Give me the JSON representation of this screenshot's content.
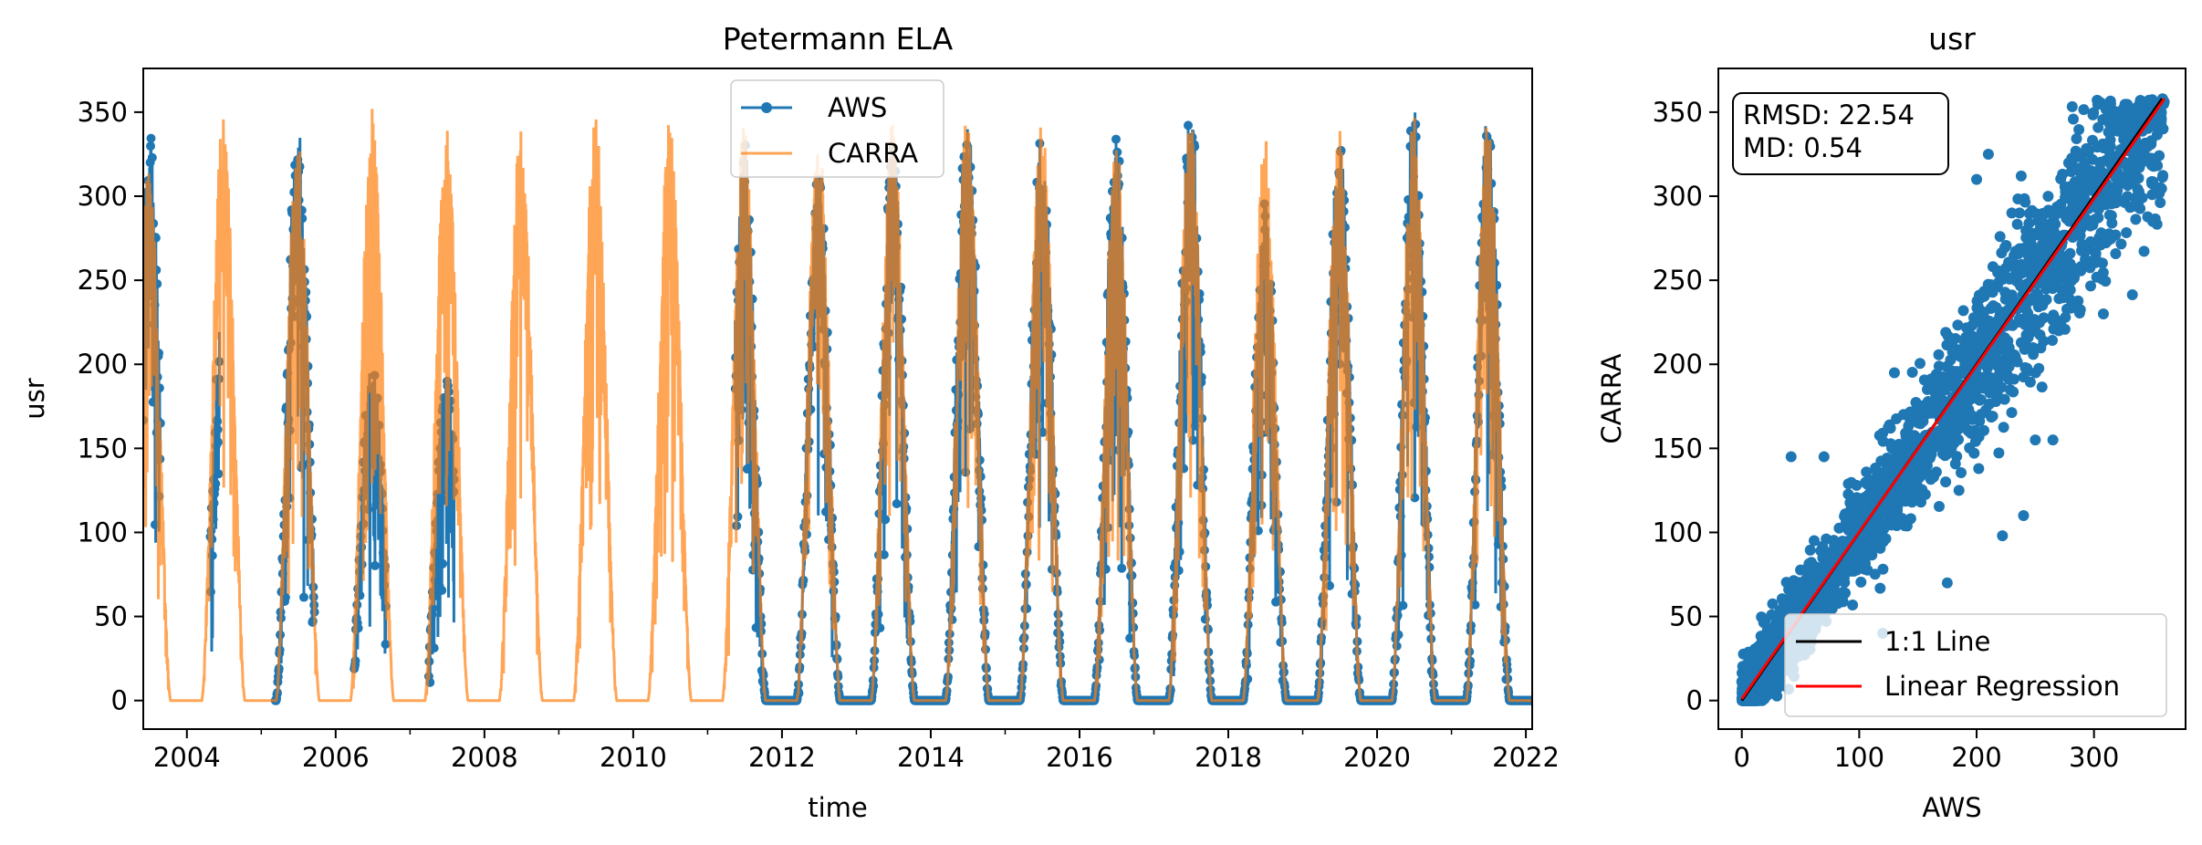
{
  "chart_data": [
    {
      "type": "line",
      "title": "Petermann ELA",
      "xlabel": "time",
      "ylabel": "usr",
      "xlim": [
        "2003-06-01",
        "2022-02-01"
      ],
      "ylim": [
        -17,
        376
      ],
      "x_ticks": [
        "2004",
        "2006",
        "2008",
        "2010",
        "2012",
        "2014",
        "2016",
        "2018",
        "2020",
        "2022"
      ],
      "y_ticks": [
        0,
        50,
        100,
        150,
        200,
        250,
        300,
        350
      ],
      "legend_position": "top-center",
      "series": [
        {
          "name": "AWS",
          "color": "#1f77b4",
          "marker": "dot",
          "note_periods": [
            [
              "2003-06-01",
              "2003-08-25"
            ],
            [
              "2004-04-25",
              "2004-06-10"
            ],
            [
              "2005-03-10",
              "2005-09-20"
            ],
            [
              "2006-04-01",
              "2006-09-05"
            ],
            [
              "2007-04-01",
              "2007-08-05"
            ],
            [
              "2011-05-15",
              "2022-01-31"
            ]
          ],
          "peaks": [
            {
              "x": "2003-06-10",
              "y": 344
            },
            {
              "x": "2004-06-05",
              "y": 245
            },
            {
              "x": "2005-06-05",
              "y": 344
            },
            {
              "x": "2006-05-25",
              "y": 205
            },
            {
              "x": "2007-05-25",
              "y": 195
            },
            {
              "x": "2011-06-15",
              "y": 335
            },
            {
              "x": "2012-06-15",
              "y": 320
            },
            {
              "x": "2013-06-15",
              "y": 330
            },
            {
              "x": "2014-06-15",
              "y": 354
            },
            {
              "x": "2015-06-15",
              "y": 340
            },
            {
              "x": "2016-06-15",
              "y": 340
            },
            {
              "x": "2017-06-15",
              "y": 358
            },
            {
              "x": "2019-06-15",
              "y": 337
            },
            {
              "x": "2020-06-15",
              "y": 353
            },
            {
              "x": "2021-06-15",
              "y": 354
            }
          ]
        },
        {
          "name": "CARRA",
          "color": "#ff7f0e",
          "opacity": 0.7,
          "peaks": [
            {
              "x": "2003-06-10",
              "y": 320
            },
            {
              "x": "2004-06-10",
              "y": 348
            },
            {
              "x": "2005-06-10",
              "y": 340
            },
            {
              "x": "2006-06-10",
              "y": 352
            },
            {
              "x": "2007-06-10",
              "y": 343
            },
            {
              "x": "2008-06-10",
              "y": 345
            },
            {
              "x": "2009-06-10",
              "y": 350
            },
            {
              "x": "2010-06-10",
              "y": 348
            },
            {
              "x": "2011-06-10",
              "y": 345
            },
            {
              "x": "2012-06-10",
              "y": 338
            },
            {
              "x": "2013-06-10",
              "y": 345
            },
            {
              "x": "2014-06-10",
              "y": 348
            },
            {
              "x": "2015-06-10",
              "y": 350
            },
            {
              "x": "2016-06-10",
              "y": 340
            },
            {
              "x": "2017-06-10",
              "y": 348
            },
            {
              "x": "2018-06-10",
              "y": 338
            },
            {
              "x": "2019-06-10",
              "y": 340
            },
            {
              "x": "2020-06-10",
              "y": 350
            },
            {
              "x": "2021-06-10",
              "y": 350
            }
          ]
        }
      ]
    },
    {
      "type": "scatter",
      "title": "usr",
      "xlabel": "AWS",
      "ylabel": "CARRA",
      "xlim": [
        -20,
        378
      ],
      "ylim": [
        -17,
        376
      ],
      "x_ticks": [
        0,
        100,
        200,
        300
      ],
      "y_ticks": [
        0,
        50,
        100,
        150,
        200,
        250,
        300,
        350
      ],
      "annotation": [
        "RMSD: 22.54",
        "MD: 0.54"
      ],
      "legend_position": "bottom-right",
      "points_color": "#1f77b4",
      "outliers": [
        {
          "x": 42,
          "y": 145
        },
        {
          "x": 70,
          "y": 145
        },
        {
          "x": 130,
          "y": 195
        },
        {
          "x": 158,
          "y": 190
        },
        {
          "x": 175,
          "y": 70
        },
        {
          "x": 240,
          "y": 110
        },
        {
          "x": 250,
          "y": 155
        },
        {
          "x": 270,
          "y": 220
        },
        {
          "x": 265,
          "y": 155
        },
        {
          "x": 308,
          "y": 230
        },
        {
          "x": 310,
          "y": 295
        },
        {
          "x": 350,
          "y": 285
        },
        {
          "x": 230,
          "y": 290
        },
        {
          "x": 238,
          "y": 312
        },
        {
          "x": 200,
          "y": 310
        },
        {
          "x": 210,
          "y": 325
        },
        {
          "x": 222,
          "y": 98
        },
        {
          "x": 120,
          "y": 40
        },
        {
          "x": 145,
          "y": 118
        },
        {
          "x": 185,
          "y": 125
        }
      ],
      "series": [
        {
          "name": "1:1 Line",
          "color": "#000000",
          "x": [
            0,
            358
          ],
          "y": [
            0,
            358
          ]
        },
        {
          "name": "Linear Regression",
          "color": "#ff0000",
          "x": [
            0,
            360
          ],
          "y": [
            1,
            358
          ]
        }
      ]
    }
  ]
}
